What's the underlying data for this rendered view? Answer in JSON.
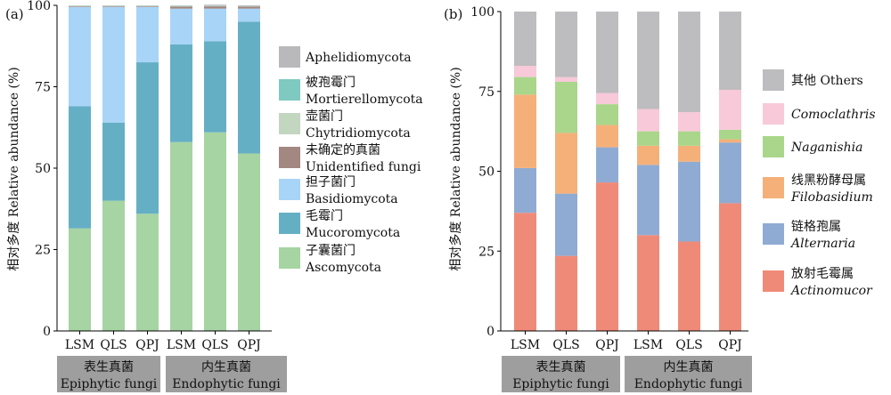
{
  "chart_data": [
    {
      "type": "bar",
      "stacked": true,
      "panel_label": "(a)",
      "categories": [
        "LSM",
        "QLS",
        "QPJ",
        "LSM",
        "QLS",
        "QPJ"
      ],
      "groups": [
        {
          "label_cn": "表生真菌",
          "label_en": "Epiphytic fungi",
          "span": [
            0,
            2
          ]
        },
        {
          "label_cn": "内生真菌",
          "label_en": "Endophytic fungi",
          "span": [
            3,
            5
          ]
        }
      ],
      "ylabel": "相对多度 Relative abundance (%)",
      "ylim": [
        0,
        100
      ],
      "yticks": [
        0,
        25,
        50,
        75,
        100
      ],
      "grid": false,
      "legend_position": "right",
      "series": [
        {
          "name_cn": "子囊菌门",
          "name_en": "Ascomycota",
          "color": "#a6d4a3",
          "values": [
            31.5,
            40,
            36,
            58,
            61,
            54.5
          ]
        },
        {
          "name_cn": "毛霉门",
          "name_en": "Mucoromycota",
          "color": "#65afc5",
          "values": [
            37.5,
            24,
            46.5,
            30,
            28,
            40.5
          ]
        },
        {
          "name_cn": "担子菌门",
          "name_en": "Basidiomycota",
          "color": "#a8d4f7",
          "values": [
            30.5,
            35.5,
            17,
            11,
            10,
            4
          ]
        },
        {
          "name_cn": "未确定的真菌",
          "name_en": "Unidentified fungi",
          "color": "#a38781",
          "values": [
            0.2,
            0.2,
            0.2,
            0.6,
            0.7,
            0.6
          ]
        },
        {
          "name_cn": "壶菌门",
          "name_en": "Chytridiomycota",
          "color": "#c3d6c0",
          "values": [
            0.2,
            0.1,
            0.1,
            0.2,
            0.1,
            0.1
          ]
        },
        {
          "name_cn": "被孢霉门",
          "name_en": "Mortierellomycota",
          "color": "#7ec9c0",
          "values": [
            0.05,
            0.1,
            0.1,
            0.1,
            0.1,
            0.1
          ]
        },
        {
          "name_cn": "",
          "name_en": "Aphelidiomycota",
          "color": "#b9b8bb",
          "values": [
            0.05,
            0.1,
            0.1,
            0.1,
            0.3,
            0.2
          ]
        }
      ]
    },
    {
      "type": "bar",
      "stacked": true,
      "panel_label": "(b)",
      "categories": [
        "LSM",
        "QLS",
        "QPJ",
        "LSM",
        "QLS",
        "QPJ"
      ],
      "groups": [
        {
          "label_cn": "表生真菌",
          "label_en": "Epiphytic fungi",
          "span": [
            0,
            2
          ]
        },
        {
          "label_cn": "内生真菌",
          "label_en": "Endophytic fungi",
          "span": [
            3,
            5
          ]
        }
      ],
      "ylabel": "相对多度 Relative abundance (%)",
      "ylim": [
        0,
        100
      ],
      "yticks": [
        0,
        25,
        50,
        75,
        100
      ],
      "grid": false,
      "legend_position": "right",
      "series": [
        {
          "name_cn": "放射毛霉属",
          "name_en": "Actinomucor",
          "italic": true,
          "color": "#f08a78",
          "values": [
            37,
            23.5,
            46.5,
            30,
            28,
            40
          ]
        },
        {
          "name_cn": "链格孢属",
          "name_en": "Alternaria",
          "italic": true,
          "color": "#8fabd3",
          "values": [
            14,
            19.5,
            11,
            22,
            25,
            19
          ]
        },
        {
          "name_cn": "线黑粉酵母属",
          "name_en": "Filobasidium",
          "italic": true,
          "color": "#f5b079",
          "values": [
            23,
            19,
            7,
            6,
            5,
            1
          ]
        },
        {
          "name_cn": "",
          "name_en": "Naganishia",
          "italic": true,
          "color": "#a9d68a",
          "values": [
            5.5,
            16,
            6.5,
            4.5,
            4.5,
            3
          ]
        },
        {
          "name_cn": "",
          "name_en": "Comoclathris",
          "italic": true,
          "color": "#f8c9d8",
          "values": [
            3.5,
            1.5,
            3.5,
            7,
            6,
            12.5
          ]
        },
        {
          "name_cn": "其他",
          "name_en": "Others",
          "italic": false,
          "color": "#bdbcbe",
          "values": [
            17,
            20.5,
            25.5,
            30.5,
            31.5,
            24.5
          ]
        }
      ]
    }
  ]
}
